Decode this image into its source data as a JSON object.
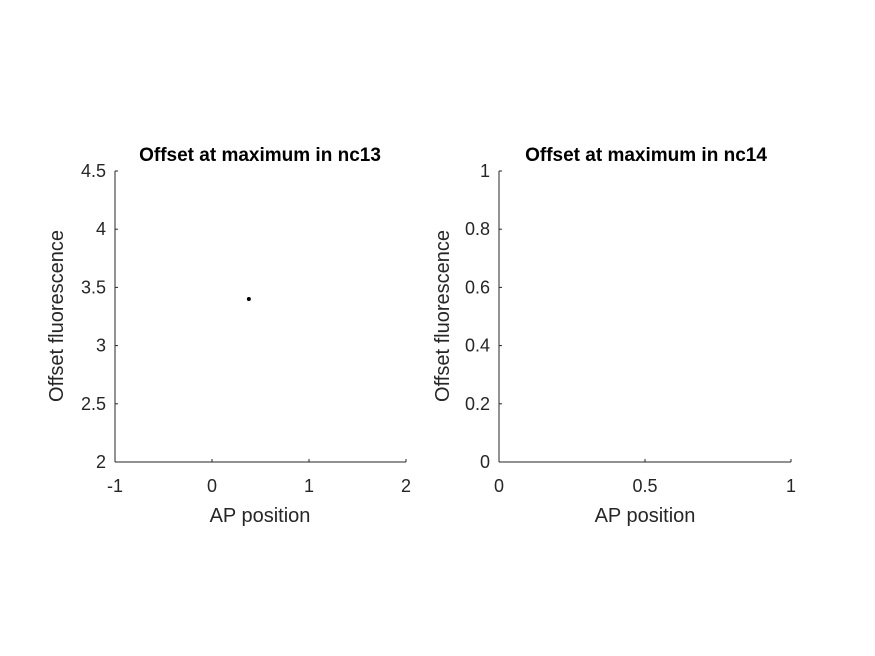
{
  "chart_data": [
    {
      "type": "scatter",
      "title": "Offset at maximum in nc13",
      "xlabel": "AP position",
      "ylabel": "Offset fluorescence",
      "xlim": [
        -1,
        2
      ],
      "ylim": [
        2,
        4.5
      ],
      "xticks": [
        "-1",
        "0",
        "1",
        "2"
      ],
      "yticks": [
        "2",
        "2.5",
        "3",
        "3.5",
        "4",
        "4.5"
      ],
      "points": [
        {
          "x": 0.38,
          "y": 3.4
        }
      ],
      "marker_color": "#000000",
      "grid": false
    },
    {
      "type": "scatter",
      "title": "Offset at maximum in nc14",
      "xlabel": "AP position",
      "ylabel": "Offset fluorescence",
      "xlim": [
        0,
        1
      ],
      "ylim": [
        0,
        1
      ],
      "xticks": [
        "0",
        "0.5",
        "1"
      ],
      "yticks": [
        "0",
        "0.2",
        "0.4",
        "0.6",
        "0.8",
        "1"
      ],
      "points": [],
      "marker_color": "#000000",
      "grid": false
    }
  ]
}
